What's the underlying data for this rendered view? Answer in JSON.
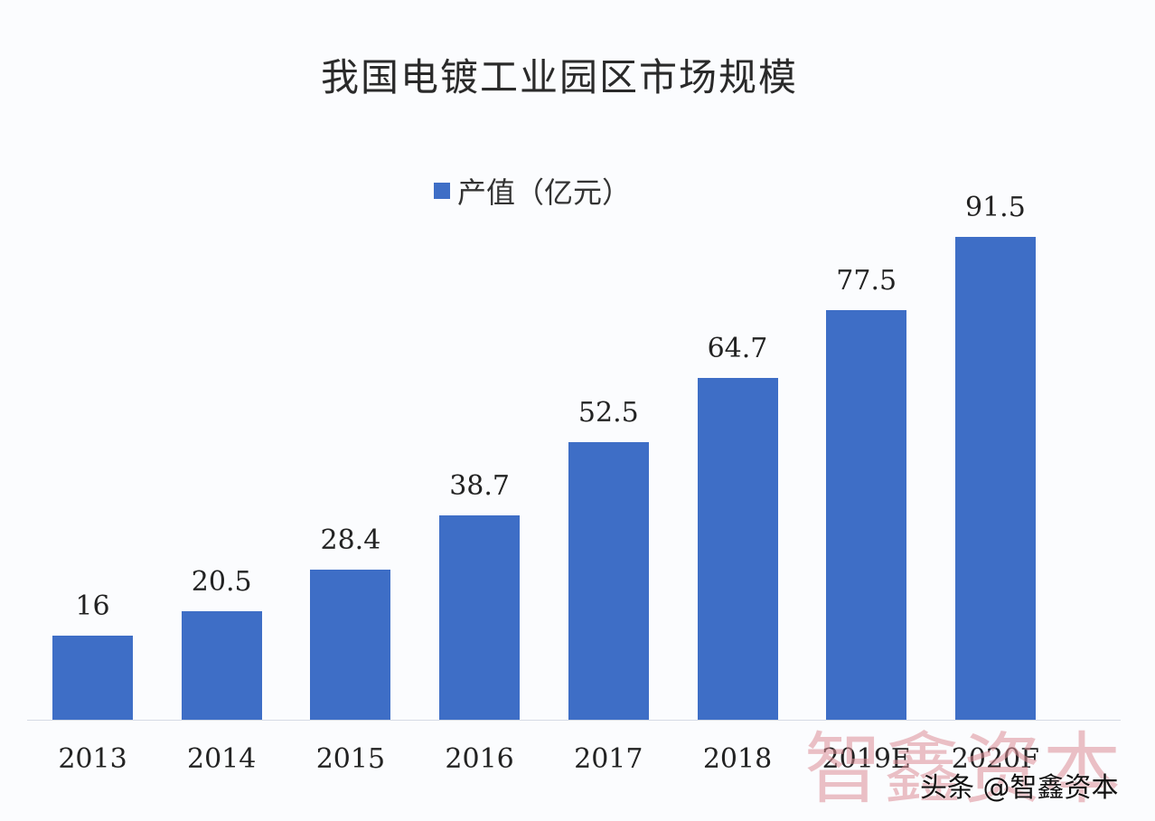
{
  "title": "我国电镀工业园区市场规模",
  "legend": {
    "label": "产值（亿元）",
    "color": "#3e6ec6"
  },
  "watermark": {
    "large": "智鑫资本",
    "small": "头条 @智鑫资本"
  },
  "chart_data": {
    "type": "bar",
    "title": "我国电镀工业园区市场规模",
    "categories": [
      "2013",
      "2014",
      "2015",
      "2016",
      "2017",
      "2018",
      "2019E",
      "2020F"
    ],
    "series": [
      {
        "name": "产值（亿元）",
        "values": [
          16,
          20.5,
          28.4,
          38.7,
          52.5,
          64.7,
          77.5,
          91.5
        ]
      }
    ],
    "values": [
      16,
      20.5,
      28.4,
      38.7,
      52.5,
      64.7,
      77.5,
      91.5
    ],
    "labels": [
      "16",
      "20.5",
      "28.4",
      "38.7",
      "52.5",
      "64.7",
      "77.5",
      "91.5"
    ],
    "xlabel": "",
    "ylabel": "",
    "ylim": [
      0,
      100
    ],
    "grid": false,
    "legend_position": "top",
    "data_labels": true
  }
}
